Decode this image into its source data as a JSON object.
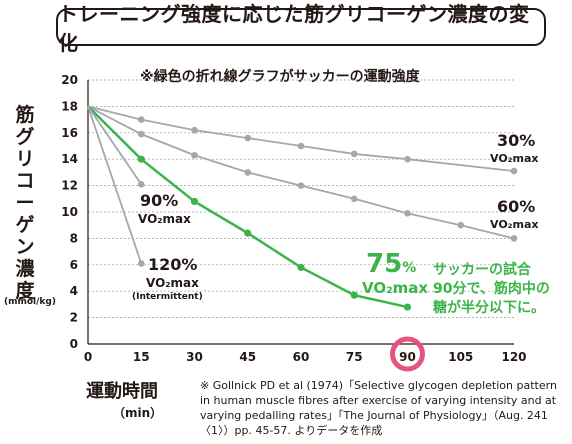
{
  "title": "トレーニング強度に応じた筋グリコーゲン濃度の変化",
  "subtitle": "※緑色の折れ線グラフがサッカーの運動強度",
  "ylabel": "筋グリコーゲン濃度",
  "yunit": "(mmol/kg)",
  "xlabel": "運動時間",
  "xunit": "（min）",
  "source": "※ Gollnick PD et al (1974)「Selective glycogen depletion pattern in human muscle fibres after exercise of varying intensity and at varying pedalling rates」「The Journal of Physiology」（Aug.  241〈1〉）pp. 45-57.  よりデータを作成",
  "annotation": [
    "サッカーの試合",
    "90分で、筋肉中の",
    "糖が半分以下に。"
  ],
  "colors": {
    "green": "#3bb54a",
    "gray": "#a7a7a7",
    "highlight": "#e5547c"
  },
  "chart_data": {
    "type": "line",
    "xlim": [
      0,
      120
    ],
    "ylim": [
      0,
      20
    ],
    "xticks": [
      0,
      15,
      30,
      45,
      60,
      75,
      90,
      105,
      120
    ],
    "yticks": [
      0,
      2,
      4,
      6,
      8,
      10,
      12,
      14,
      16,
      18,
      20
    ],
    "grid": "horizontal",
    "highlight_x": 90,
    "series": [
      {
        "name_parts": [
          "30%",
          "VO₂max"
        ],
        "color": "gray",
        "x": [
          0,
          15,
          30,
          45,
          60,
          75,
          90,
          120
        ],
        "y": [
          18,
          17,
          16.2,
          15.6,
          15,
          14.4,
          14,
          13.1
        ]
      },
      {
        "name_parts": [
          "60%",
          "VO₂max"
        ],
        "color": "gray",
        "x": [
          0,
          15,
          30,
          45,
          60,
          75,
          90,
          105,
          120
        ],
        "y": [
          18,
          15.9,
          14.3,
          13,
          12,
          11,
          9.9,
          9,
          8
        ]
      },
      {
        "name_parts": [
          "75%",
          "VO₂max"
        ],
        "color": "green",
        "x": [
          0,
          15,
          30,
          45,
          60,
          75,
          90
        ],
        "y": [
          18,
          14,
          10.8,
          8.4,
          5.8,
          3.7,
          2.8
        ]
      },
      {
        "name_parts": [
          "90%",
          "VO₂max"
        ],
        "color": "gray",
        "x": [
          0,
          15
        ],
        "y": [
          18,
          12.1
        ]
      },
      {
        "name_parts": [
          "120%",
          "VO₂max",
          "(Intermittent)"
        ],
        "color": "gray",
        "x": [
          0,
          15
        ],
        "y": [
          18,
          6.1
        ]
      }
    ]
  }
}
